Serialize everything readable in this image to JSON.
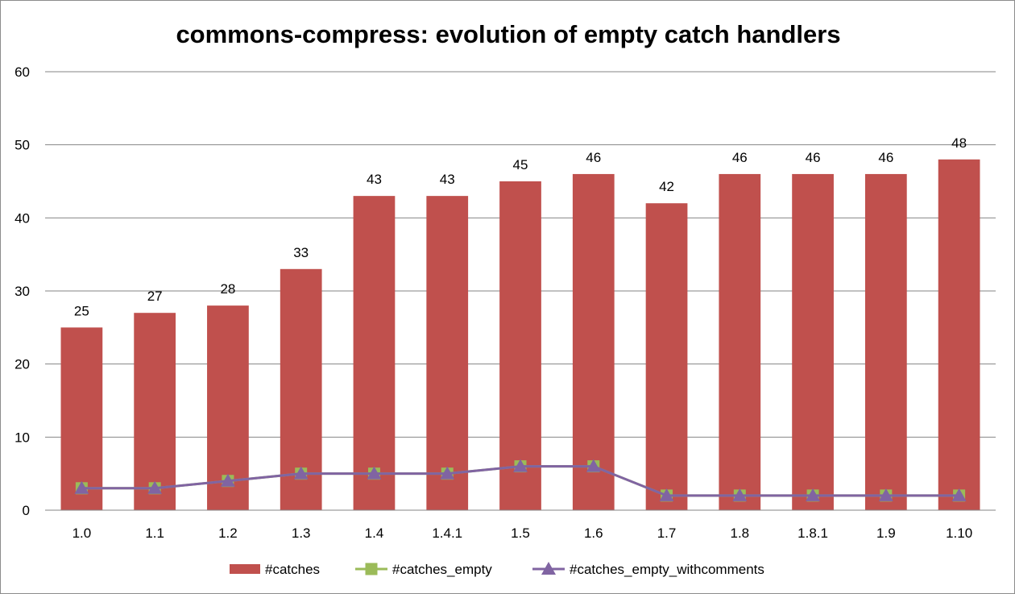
{
  "chart_data": {
    "type": "bar",
    "title": "commons-compress: evolution of empty catch handlers",
    "xlabel": "",
    "ylabel": "",
    "ylim": [
      0,
      60
    ],
    "yticks": [
      0,
      10,
      20,
      30,
      40,
      50,
      60
    ],
    "grid": true,
    "legend_position": "bottom",
    "categories": [
      "1.0",
      "1.1",
      "1.2",
      "1.3",
      "1.4",
      "1.4.1",
      "1.5",
      "1.6",
      "1.7",
      "1.8",
      "1.8.1",
      "1.9",
      "1.10"
    ],
    "series": [
      {
        "name": "#catches",
        "kind": "bar",
        "color": "#C0504D",
        "values": [
          25,
          27,
          28,
          33,
          43,
          43,
          45,
          46,
          42,
          46,
          46,
          46,
          48
        ],
        "data_labels": true
      },
      {
        "name": "#catches_empty",
        "kind": "line",
        "marker": "square",
        "color": "#9BBB59",
        "values": [
          3,
          3,
          4,
          5,
          5,
          5,
          6,
          6,
          2,
          2,
          2,
          2,
          2
        ]
      },
      {
        "name": "#catches_empty_withcomments",
        "kind": "line",
        "marker": "triangle",
        "color": "#8064A2",
        "values": [
          3,
          3,
          4,
          5,
          5,
          5,
          6,
          6,
          2,
          2,
          2,
          2,
          2
        ]
      }
    ]
  }
}
